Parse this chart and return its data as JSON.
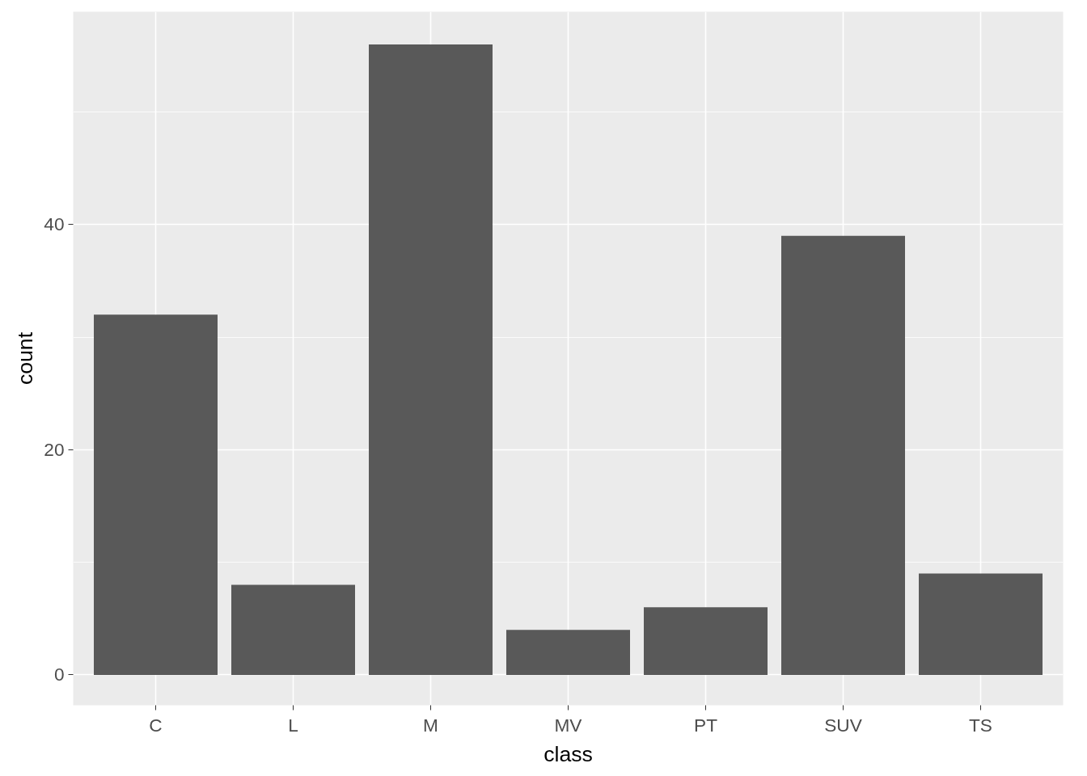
{
  "chart_data": {
    "type": "bar",
    "xlabel": "class",
    "ylabel": "count",
    "categories": [
      "C",
      "L",
      "M",
      "MV",
      "PT",
      "SUV",
      "TS"
    ],
    "values": [
      32,
      8,
      56,
      4,
      6,
      39,
      9
    ],
    "color": "#595959",
    "ylim": [
      -2.7,
      58.9
    ],
    "yticks": [
      0,
      20,
      40
    ],
    "grid": true
  }
}
